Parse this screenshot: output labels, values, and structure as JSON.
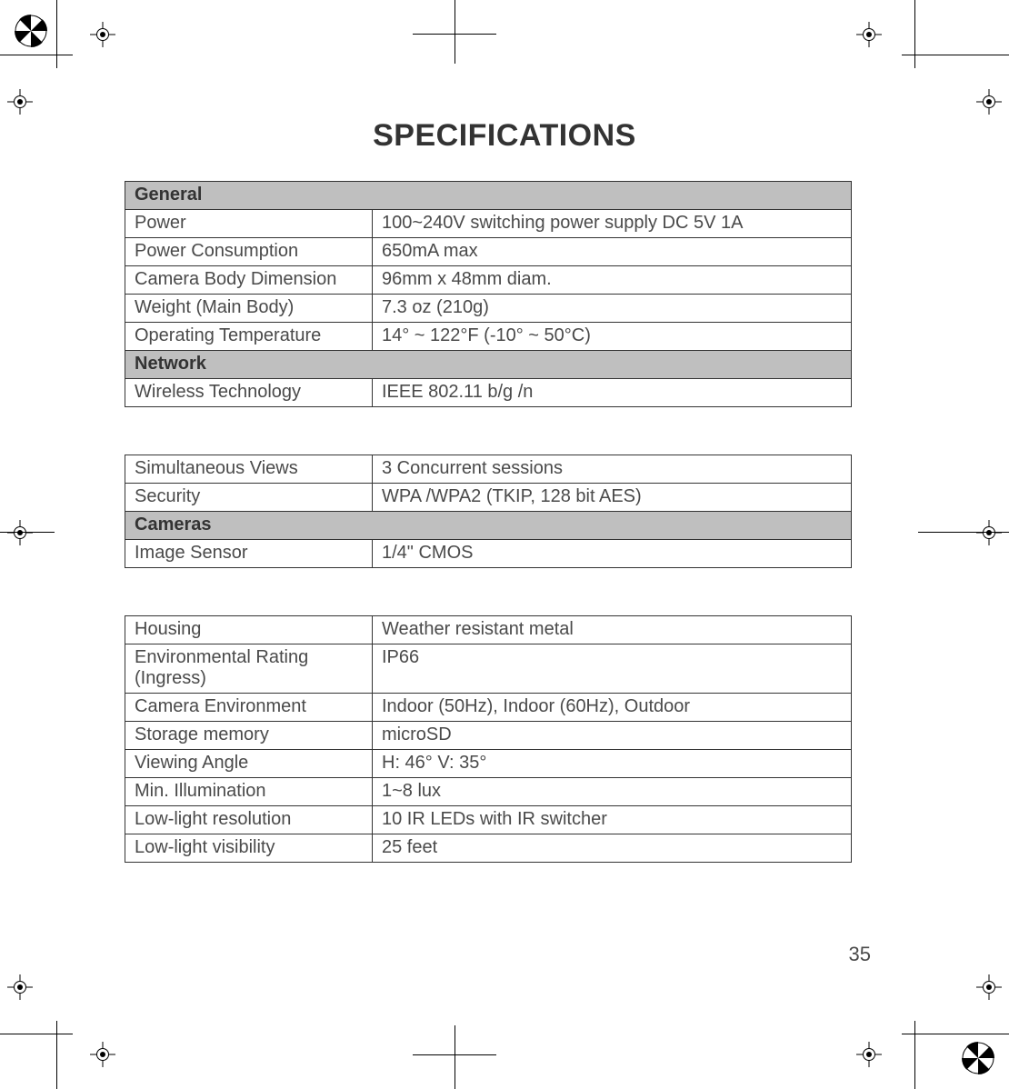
{
  "title": "SPECIFICATIONS",
  "page_number": "35",
  "colors": {
    "text": "#4a4a4a",
    "title": "#333333",
    "border": "#333333",
    "section_bg": "#bfbfbf",
    "background": "#ffffff"
  },
  "tables": [
    {
      "rows": [
        {
          "type": "section",
          "label": "General"
        },
        {
          "type": "data",
          "label": "Power",
          "value": "100~240V switching power supply DC 5V 1A"
        },
        {
          "type": "data",
          "label": "Power Consumption",
          "value": "650mA max"
        },
        {
          "type": "data",
          "label": "Camera Body Dimension",
          "value": "96mm x 48mm diam."
        },
        {
          "type": "data",
          "label": "Weight (Main Body)",
          "value": "7.3 oz (210g)"
        },
        {
          "type": "data",
          "label": "Operating Temperature",
          "value": "14° ~ 122°F  (-10° ~ 50°C)"
        },
        {
          "type": "section",
          "label": "Network"
        },
        {
          "type": "data",
          "label": "Wireless Technology",
          "value": "IEEE 802.11 b/g /n"
        }
      ]
    },
    {
      "rows": [
        {
          "type": "data",
          "label": "Simultaneous Views",
          "value": "3 Concurrent sessions"
        },
        {
          "type": "data",
          "label": "Security",
          "value": "WPA /WPA2 (TKIP, 128 bit AES)"
        },
        {
          "type": "section",
          "label": "Cameras"
        },
        {
          "type": "data",
          "label": "Image Sensor",
          "value": "1/4\" CMOS"
        }
      ]
    },
    {
      "rows": [
        {
          "type": "data",
          "label": "Housing",
          "value": "Weather resistant metal"
        },
        {
          "type": "data",
          "label": "Environmental Rating (Ingress)",
          "value": "IP66"
        },
        {
          "type": "data",
          "label": "Camera Environment",
          "value": "Indoor (50Hz), Indoor (60Hz), Outdoor"
        },
        {
          "type": "data",
          "label": "Storage memory",
          "value": "microSD"
        },
        {
          "type": "data",
          "label": "Viewing Angle",
          "value": "H: 46° V: 35°"
        },
        {
          "type": "data",
          "label": "Min. Illumination",
          "value": "1~8 lux"
        },
        {
          "type": "data",
          "label": "Low-light resolution",
          "value": "10 IR LEDs with IR switcher"
        },
        {
          "type": "data",
          "label": "Low-light visibility",
          "value": "25 feet"
        }
      ]
    }
  ]
}
